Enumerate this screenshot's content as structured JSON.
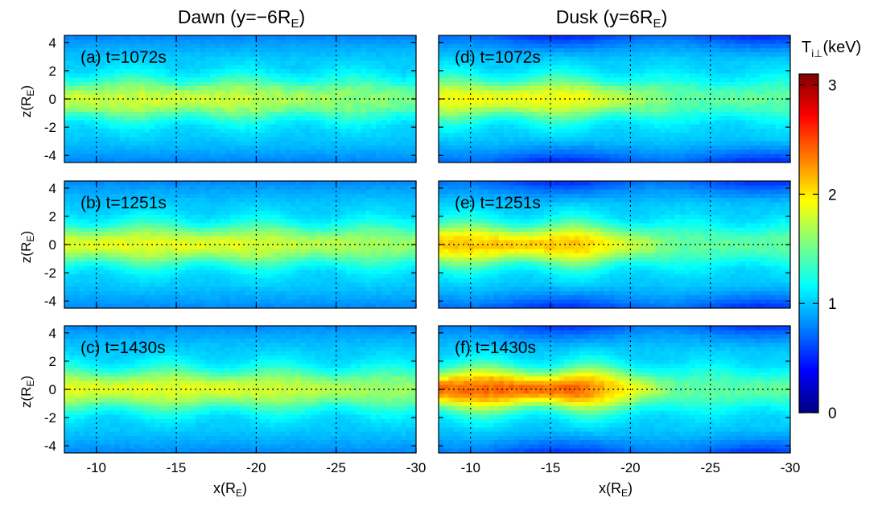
{
  "figure": {
    "col_titles": [
      {
        "main": "Dawn (y=−6R",
        "sub": "E",
        "end": ")"
      },
      {
        "main": "Dusk (y=6R",
        "sub": "E",
        "end": ")"
      }
    ],
    "ylabel": {
      "main": "z(R",
      "sub": "E",
      "end": ")"
    },
    "xlabel": {
      "main": "x(R",
      "sub": "E",
      "end": ")"
    },
    "colorbar": {
      "label_main": "T",
      "label_sub": "i⊥",
      "label_end": "(keV)",
      "ticks": [
        0,
        1,
        2,
        3
      ],
      "range": [
        0,
        3.1
      ]
    }
  },
  "chart_data": {
    "type": "heatmap",
    "variable": "T_i⊥ (keV)",
    "xlim": [
      -8,
      -30
    ],
    "ylim": [
      -4.5,
      4.5
    ],
    "xticks": [
      -10,
      -15,
      -20,
      -25,
      -30
    ],
    "yticks": [
      4,
      2,
      0,
      -2,
      -4
    ],
    "colormap": "jet",
    "panels": [
      {
        "label": "(a) t=1072s",
        "side": "dawn",
        "core_temperature_keV": 1.78,
        "background_keV": 1.0,
        "lobe_min_keV": 0.78
      },
      {
        "label": "(b) t=1251s",
        "side": "dawn",
        "core_temperature_keV": 1.85,
        "background_keV": 1.0,
        "lobe_min_keV": 0.8
      },
      {
        "label": "(c) t=1430s",
        "side": "dawn",
        "core_temperature_keV": 1.85,
        "background_keV": 1.0,
        "lobe_min_keV": 0.8
      },
      {
        "label": "(d) t=1072s",
        "side": "dusk",
        "core_temperature_keV": 1.9,
        "background_keV": 1.0,
        "lobe_min_keV": 0.6
      },
      {
        "label": "(e) t=1251s",
        "side": "dusk",
        "core_temperature_keV": 2.1,
        "background_keV": 1.0,
        "lobe_min_keV": 0.62
      },
      {
        "label": "(f) t=1430s",
        "side": "dusk",
        "core_temperature_keV": 2.4,
        "background_keV": 1.0,
        "lobe_min_keV": 0.65
      }
    ]
  }
}
